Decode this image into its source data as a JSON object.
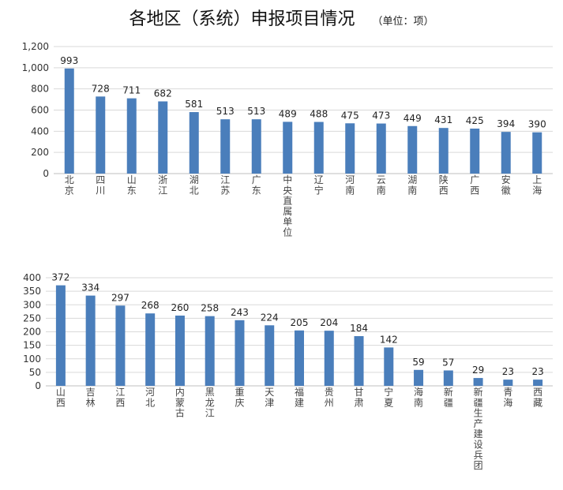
{
  "header": {
    "title": "各地区（系统）申报项目情况",
    "unit": "（单位：项）"
  },
  "chart_data": [
    {
      "type": "bar",
      "ylim": [
        0,
        1200
      ],
      "yticks": [
        "0",
        "200",
        "400",
        "600",
        "800",
        "1,000",
        "1,200"
      ],
      "grid": true,
      "color": "#4A7EBB",
      "categories": [
        "北京",
        "四川",
        "山东",
        "浙江",
        "湖北",
        "江苏",
        "广东",
        "中央直属单位",
        "辽宁",
        "河南",
        "云南",
        "湖南",
        "陕西",
        "广西",
        "安徽",
        "上海"
      ],
      "values": [
        993,
        728,
        711,
        682,
        581,
        513,
        513,
        489,
        488,
        475,
        473,
        449,
        431,
        425,
        394,
        390
      ]
    },
    {
      "type": "bar",
      "ylim": [
        0,
        400
      ],
      "yticks": [
        "0",
        "50",
        "100",
        "150",
        "200",
        "250",
        "300",
        "350",
        "400"
      ],
      "grid": true,
      "color": "#4A7EBB",
      "categories": [
        "山西",
        "吉林",
        "江西",
        "河北",
        "内蒙古",
        "黑龙江",
        "重庆",
        "天津",
        "福建",
        "贵州",
        "甘肃",
        "宁夏",
        "海南",
        "新疆",
        "新疆生产建设兵团",
        "青海",
        "西藏"
      ],
      "values": [
        372,
        334,
        297,
        268,
        260,
        258,
        243,
        224,
        205,
        204,
        184,
        142,
        59,
        57,
        29,
        23,
        23
      ]
    }
  ]
}
